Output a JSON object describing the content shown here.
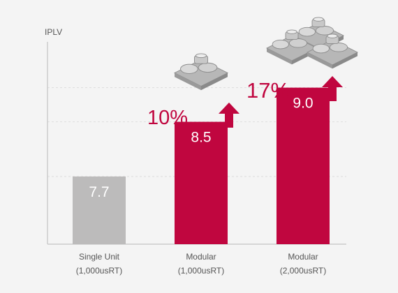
{
  "chart_data": {
    "type": "bar",
    "ylabel": "IPLV",
    "categories": [
      [
        "Single Unit",
        "(1,000usRT)"
      ],
      [
        "Modular",
        "(1,000usRT)"
      ],
      [
        "Modular",
        "(2,000usRT)"
      ]
    ],
    "values": [
      7.7,
      8.5,
      9.0
    ],
    "value_labels": [
      "7.7",
      "8.5",
      "9.0"
    ],
    "annotations": [
      null,
      "10%",
      "17%"
    ],
    "ylim": [
      6.71,
      9.67
    ],
    "grid": true,
    "colors": {
      "baseline_bar": "#bcbbbb",
      "highlight_bar": "#c0063f",
      "annotation": "#c0063f",
      "axis": "#cccccc",
      "grid": "#dddddd",
      "text": "#555555",
      "background": "#f4f4f4"
    },
    "icons": [
      null,
      "single-chiller-icon",
      "double-chiller-icon"
    ]
  }
}
